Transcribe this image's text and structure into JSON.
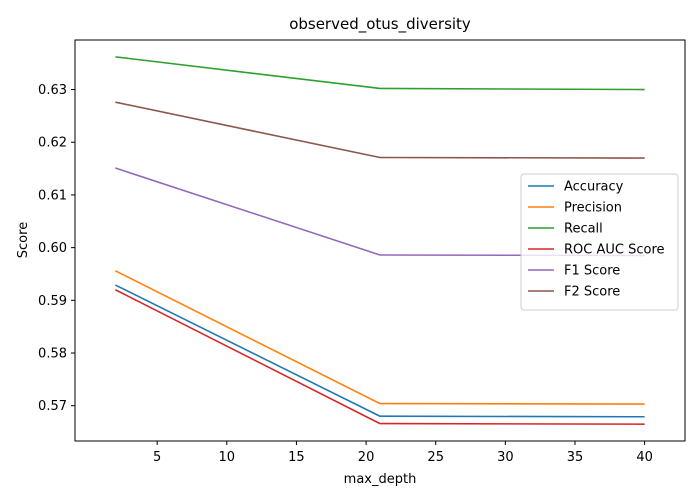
{
  "chart_data": {
    "type": "line",
    "title": "observed_otus_diversity",
    "xlabel": "max_depth",
    "ylabel": "Score",
    "x": [
      2,
      21,
      40
    ],
    "xlim": [
      -0.9,
      42.9
    ],
    "ylim": [
      0.5633,
      0.6394
    ],
    "xticks": [
      5,
      10,
      15,
      20,
      25,
      30,
      35,
      40
    ],
    "yticks": [
      0.57,
      0.58,
      0.59,
      0.6,
      0.61,
      0.62,
      0.63
    ],
    "ytick_labels": [
      "0.57",
      "0.58",
      "0.59",
      "0.60",
      "0.61",
      "0.62",
      "0.63"
    ],
    "grid": false,
    "legend_position": "center-right",
    "series": [
      {
        "name": "Accuracy",
        "color": "#1f77b4",
        "values": [
          0.5929,
          0.568,
          0.5679
        ]
      },
      {
        "name": "Precision",
        "color": "#ff7f0e",
        "values": [
          0.5956,
          0.5704,
          0.5703
        ]
      },
      {
        "name": "Recall",
        "color": "#2ca02c",
        "values": [
          0.6362,
          0.6302,
          0.63
        ]
      },
      {
        "name": "ROC AUC Score",
        "color": "#d62728",
        "values": [
          0.592,
          0.5666,
          0.5665
        ]
      },
      {
        "name": "F1 Score",
        "color": "#9467bd",
        "values": [
          0.6151,
          0.5986,
          0.5985
        ]
      },
      {
        "name": "F2 Score",
        "color": "#8c564b",
        "values": [
          0.6276,
          0.6171,
          0.617
        ]
      }
    ]
  }
}
